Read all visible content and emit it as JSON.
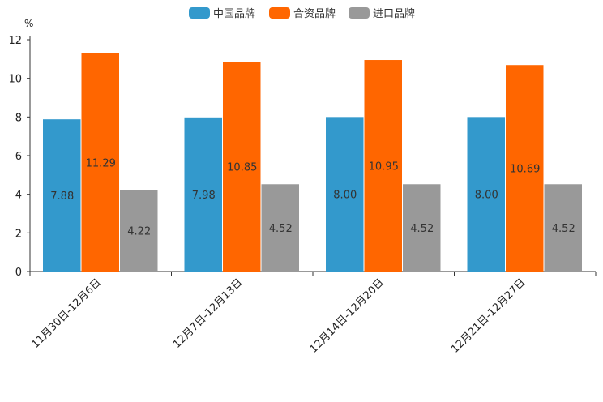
{
  "chart_data": {
    "type": "bar",
    "title": "",
    "ylabel": "%",
    "xlabel": "",
    "ylim": [
      0,
      12
    ],
    "yticks": [
      0,
      2,
      4,
      6,
      8,
      10,
      12
    ],
    "ytick_labels": [
      "0",
      "2",
      "4",
      "6",
      "8",
      "10",
      "12"
    ],
    "categories": [
      "11月30日-12月6日",
      "12月7日-12月13日",
      "12月14日-12月20日",
      "12月21日-12月27日"
    ],
    "series": [
      {
        "name": "中国品牌",
        "color": "#3399cc",
        "values": [
          7.88,
          7.98,
          8.0,
          8.0
        ],
        "labels": [
          "7.88",
          "7.98",
          "8.00",
          "8.00"
        ]
      },
      {
        "name": "合资品牌",
        "color": "#ff6600",
        "values": [
          11.29,
          10.85,
          10.95,
          10.69
        ],
        "labels": [
          "11.29",
          "10.85",
          "10.95",
          "10.69"
        ]
      },
      {
        "name": "进口品牌",
        "color": "#999999",
        "values": [
          4.22,
          4.52,
          4.52,
          4.52
        ],
        "labels": [
          "4.22",
          "4.52",
          "4.52",
          "4.52"
        ]
      }
    ],
    "legend_position": "top-center",
    "grid": false
  }
}
